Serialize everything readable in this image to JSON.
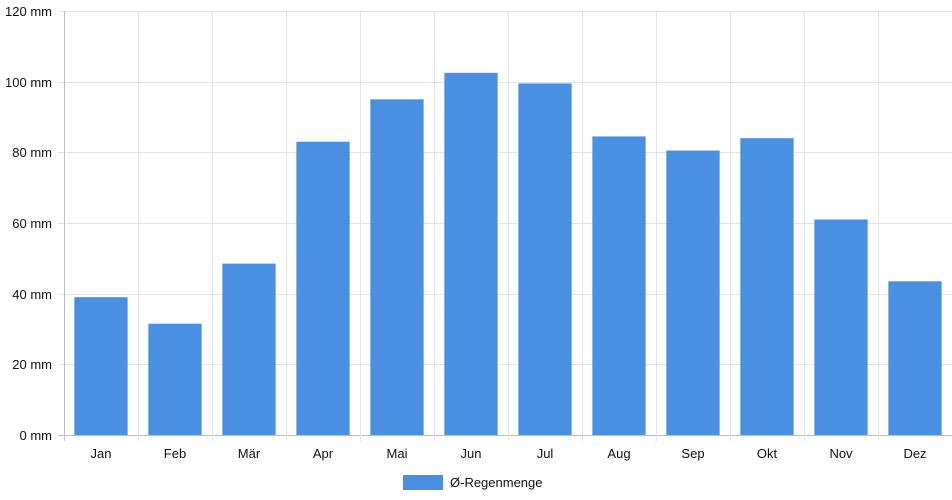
{
  "chart_data": {
    "type": "bar",
    "categories": [
      "Jan",
      "Feb",
      "Mär",
      "Apr",
      "Mai",
      "Jun",
      "Jul",
      "Aug",
      "Sep",
      "Okt",
      "Nov",
      "Dez"
    ],
    "series": [
      {
        "name": "Ø-Regenmenge",
        "color": "#4a90e2",
        "values": [
          39,
          31.5,
          48.5,
          83,
          95,
          102.5,
          99.5,
          84.5,
          80.5,
          84,
          61,
          43.5
        ]
      }
    ],
    "ylim": [
      0,
      120
    ],
    "yticks": [
      0,
      20,
      40,
      60,
      80,
      100,
      120
    ],
    "y_unit": "mm",
    "ytick_labels": [
      "0 mm",
      "20 mm",
      "40 mm",
      "60 mm",
      "80 mm",
      "100 mm",
      "120 mm"
    ],
    "title": "",
    "xlabel": "",
    "ylabel": "",
    "grid": true,
    "legend_position": "bottom-center"
  }
}
